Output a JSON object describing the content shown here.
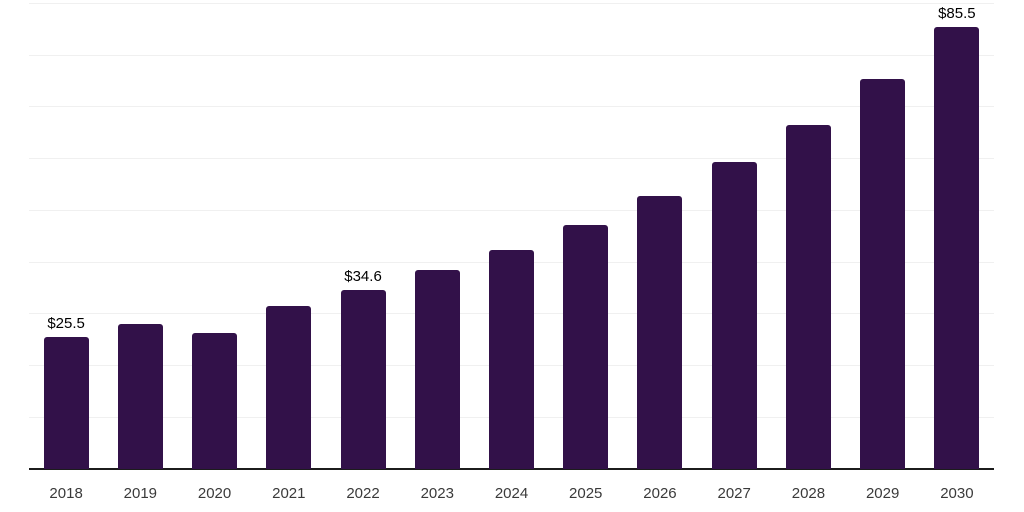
{
  "chart_data": {
    "type": "bar",
    "title": "",
    "xlabel": "",
    "ylabel": "",
    "categories": [
      "2018",
      "2019",
      "2020",
      "2021",
      "2022",
      "2023",
      "2024",
      "2025",
      "2026",
      "2027",
      "2028",
      "2029",
      "2030"
    ],
    "values": [
      25.5,
      28.0,
      26.3,
      31.5,
      34.6,
      38.5,
      42.3,
      47.2,
      52.7,
      59.3,
      66.4,
      75.3,
      85.5
    ],
    "value_labels": [
      {
        "category": "2018",
        "text": "$25.5"
      },
      {
        "category": "2022",
        "text": "$34.6"
      },
      {
        "category": "2030",
        "text": "$85.5"
      }
    ],
    "ylim": [
      0,
      90
    ],
    "grid_step": 10,
    "grid": true,
    "legend": false,
    "y_tick_labels_shown": false,
    "colors": {
      "bar": "#321149",
      "grid": "#f0f0f0",
      "axis": "#1c1c1c",
      "value_label": "#000000",
      "tick_label": "#3a3a3a",
      "background": "#ffffff"
    }
  }
}
